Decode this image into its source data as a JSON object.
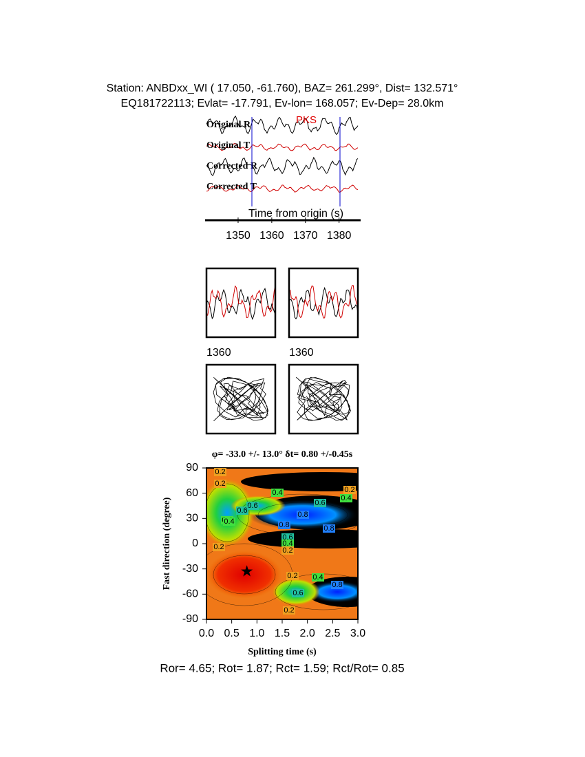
{
  "header": {
    "station": "Station: ANBDxx_WI (  17.050,  -61.760), BAZ=  261.299°, Dist=  132.571°",
    "event": "EQ181722113; Evlat= -17.791, Ev-lon= 168.057; Ev-Dep= 28.0km"
  },
  "traces": {
    "labels": [
      "Original R",
      "Original T",
      "Corrected R",
      "Corrected T"
    ],
    "phase": "PKS",
    "xlabel": "Time from origin (s)",
    "xlim": [
      1340.6,
      1386
    ],
    "xticks": [
      1350,
      1360,
      1370,
      1380
    ]
  },
  "particle_panels": {
    "labels": [
      "1360",
      "1360"
    ]
  },
  "chart_data": {
    "type": "contour",
    "title": "φ= -33.0 +/- 13.0° δt= 0.80 +/-0.45s",
    "xlabel": "Splitting time (s)",
    "ylabel": "Fast direction (degree)",
    "xlim": [
      0,
      3
    ],
    "ylim": [
      -90,
      90
    ],
    "xticks": [
      {
        "value": 0,
        "label": "0.0"
      },
      {
        "value": 0.5,
        "label": "0.5"
      },
      {
        "value": 1,
        "label": "1.0"
      },
      {
        "value": 1.5,
        "label": "1.5"
      },
      {
        "value": 2,
        "label": "2.0"
      },
      {
        "value": 2.5,
        "label": "2.5"
      },
      {
        "value": 3,
        "label": "3.0"
      }
    ],
    "yticks": [
      -90,
      -60,
      -30,
      0,
      30,
      60,
      90
    ],
    "best": {
      "dt": 0.8,
      "phi": -33
    },
    "contour_labels": [
      "0.2",
      "0.4",
      "0.2",
      "0.4",
      "0.6",
      "0.8",
      "0.6",
      "0.4",
      "0.2",
      "0.6",
      "0.4",
      "0.2",
      "0.8",
      "0.2",
      "0.4",
      "0.6",
      "0.8",
      "0.2",
      "0.2",
      "0.4",
      "0.6",
      "0.8"
    ]
  },
  "footer": "Ror= 4.65; Rot= 1.87; Rct= 1.59; Rct/Rot= 0.85"
}
